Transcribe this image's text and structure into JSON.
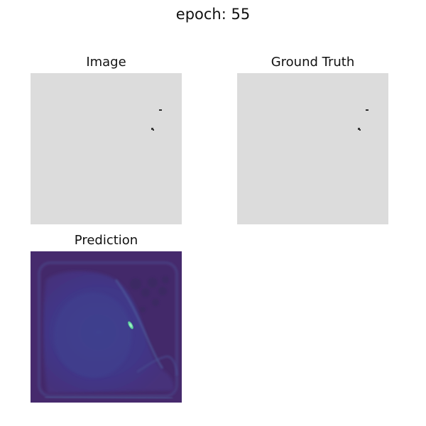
{
  "figure": {
    "title": "epoch: 55"
  },
  "panels": {
    "image": {
      "title": "Image"
    },
    "ground_truth": {
      "title": "Ground Truth"
    },
    "prediction": {
      "title": "Prediction"
    }
  },
  "colors": {
    "panel_gray": "#dcdcdc",
    "mark_dark": "#2a2a2a",
    "viridis_dark": "#452b6e",
    "viridis_mid": "#3f3c8a",
    "highlight": "#5fd4a0"
  }
}
